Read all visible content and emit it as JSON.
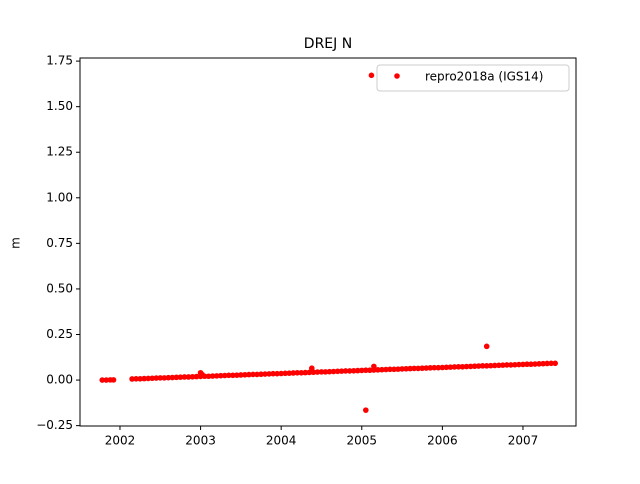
{
  "chart_data": {
    "type": "scatter",
    "title": "DREJ N",
    "y_label": "m",
    "x": [
      2001.78,
      2001.83,
      2001.88,
      2001.92,
      2002.15,
      2002.2,
      2002.25,
      2002.3,
      2002.35,
      2002.4,
      2002.45,
      2002.5,
      2002.55,
      2002.6,
      2002.65,
      2002.7,
      2002.75,
      2002.8,
      2002.85,
      2002.9,
      2002.95,
      2003.0,
      2003.05,
      2003.1,
      2003.15,
      2003.2,
      2003.25,
      2003.3,
      2003.35,
      2003.4,
      2003.45,
      2003.5,
      2003.55,
      2003.6,
      2003.65,
      2003.7,
      2003.75,
      2003.8,
      2003.85,
      2003.9,
      2003.95,
      2004.0,
      2004.05,
      2004.1,
      2004.15,
      2004.2,
      2004.25,
      2004.3,
      2004.35,
      2004.4,
      2004.45,
      2004.5,
      2004.55,
      2004.6,
      2004.65,
      2004.7,
      2004.75,
      2004.8,
      2004.85,
      2004.9,
      2004.95,
      2005.0,
      2005.05,
      2005.1,
      2005.15,
      2005.2,
      2005.25,
      2005.3,
      2005.35,
      2005.4,
      2005.45,
      2005.5,
      2005.55,
      2005.6,
      2005.65,
      2005.7,
      2005.75,
      2005.8,
      2005.85,
      2005.9,
      2005.95,
      2006.0,
      2006.05,
      2006.1,
      2006.15,
      2006.2,
      2006.25,
      2006.3,
      2006.35,
      2006.4,
      2006.45,
      2006.5,
      2006.55,
      2006.6,
      2006.65,
      2006.7,
      2006.75,
      2006.8,
      2006.85,
      2006.9,
      2006.95,
      2007.0,
      2007.05,
      2007.1,
      2007.15,
      2007.2,
      2007.25,
      2007.3,
      2007.35,
      2007.4,
      2005.12,
      2005.05,
      2006.55,
      2004.38,
      2005.15,
      2003.0,
      2003.02
    ],
    "series": [
      {
        "name": "repro2018a (IGS14)",
        "color": "#ff0000",
        "values": [
          0.0,
          0.0,
          0.001,
          0.001,
          0.006,
          0.007,
          0.007,
          0.008,
          0.009,
          0.01,
          0.011,
          0.012,
          0.012,
          0.013,
          0.014,
          0.015,
          0.016,
          0.017,
          0.017,
          0.018,
          0.019,
          0.02,
          0.021,
          0.021,
          0.022,
          0.023,
          0.024,
          0.025,
          0.026,
          0.026,
          0.027,
          0.028,
          0.029,
          0.03,
          0.031,
          0.031,
          0.032,
          0.033,
          0.034,
          0.035,
          0.035,
          0.036,
          0.037,
          0.038,
          0.039,
          0.04,
          0.04,
          0.041,
          0.042,
          0.043,
          0.044,
          0.045,
          0.045,
          0.046,
          0.047,
          0.048,
          0.049,
          0.05,
          0.05,
          0.051,
          0.052,
          0.053,
          0.054,
          0.054,
          0.055,
          0.056,
          0.057,
          0.058,
          0.059,
          0.059,
          0.06,
          0.061,
          0.062,
          0.063,
          0.064,
          0.064,
          0.065,
          0.066,
          0.067,
          0.068,
          0.068,
          0.069,
          0.07,
          0.071,
          0.072,
          0.073,
          0.073,
          0.074,
          0.075,
          0.076,
          0.077,
          0.078,
          0.078,
          0.079,
          0.08,
          0.081,
          0.082,
          0.083,
          0.083,
          0.084,
          0.085,
          0.086,
          0.087,
          0.087,
          0.088,
          0.089,
          0.09,
          0.091,
          0.092,
          0.092,
          1.672,
          -0.165,
          0.185,
          0.065,
          0.075,
          0.04,
          0.03
        ]
      }
    ],
    "xlim": [
      2001.504,
      2007.658
    ],
    "xticks": [
      2002,
      2003,
      2004,
      2005,
      2006,
      2007
    ],
    "ylim": [
      -0.252,
      1.767
    ],
    "yticks": [
      {
        "value": -0.25,
        "label": "−0.25"
      },
      {
        "value": 0,
        "label": "0.00"
      },
      0.25,
      {
        "value": 0.5,
        "label": "0.50"
      },
      0.75,
      {
        "value": 1,
        "label": "1.00"
      },
      1.25,
      {
        "value": 1.5,
        "label": "1.50"
      },
      1.75
    ],
    "legend": "upper right"
  }
}
